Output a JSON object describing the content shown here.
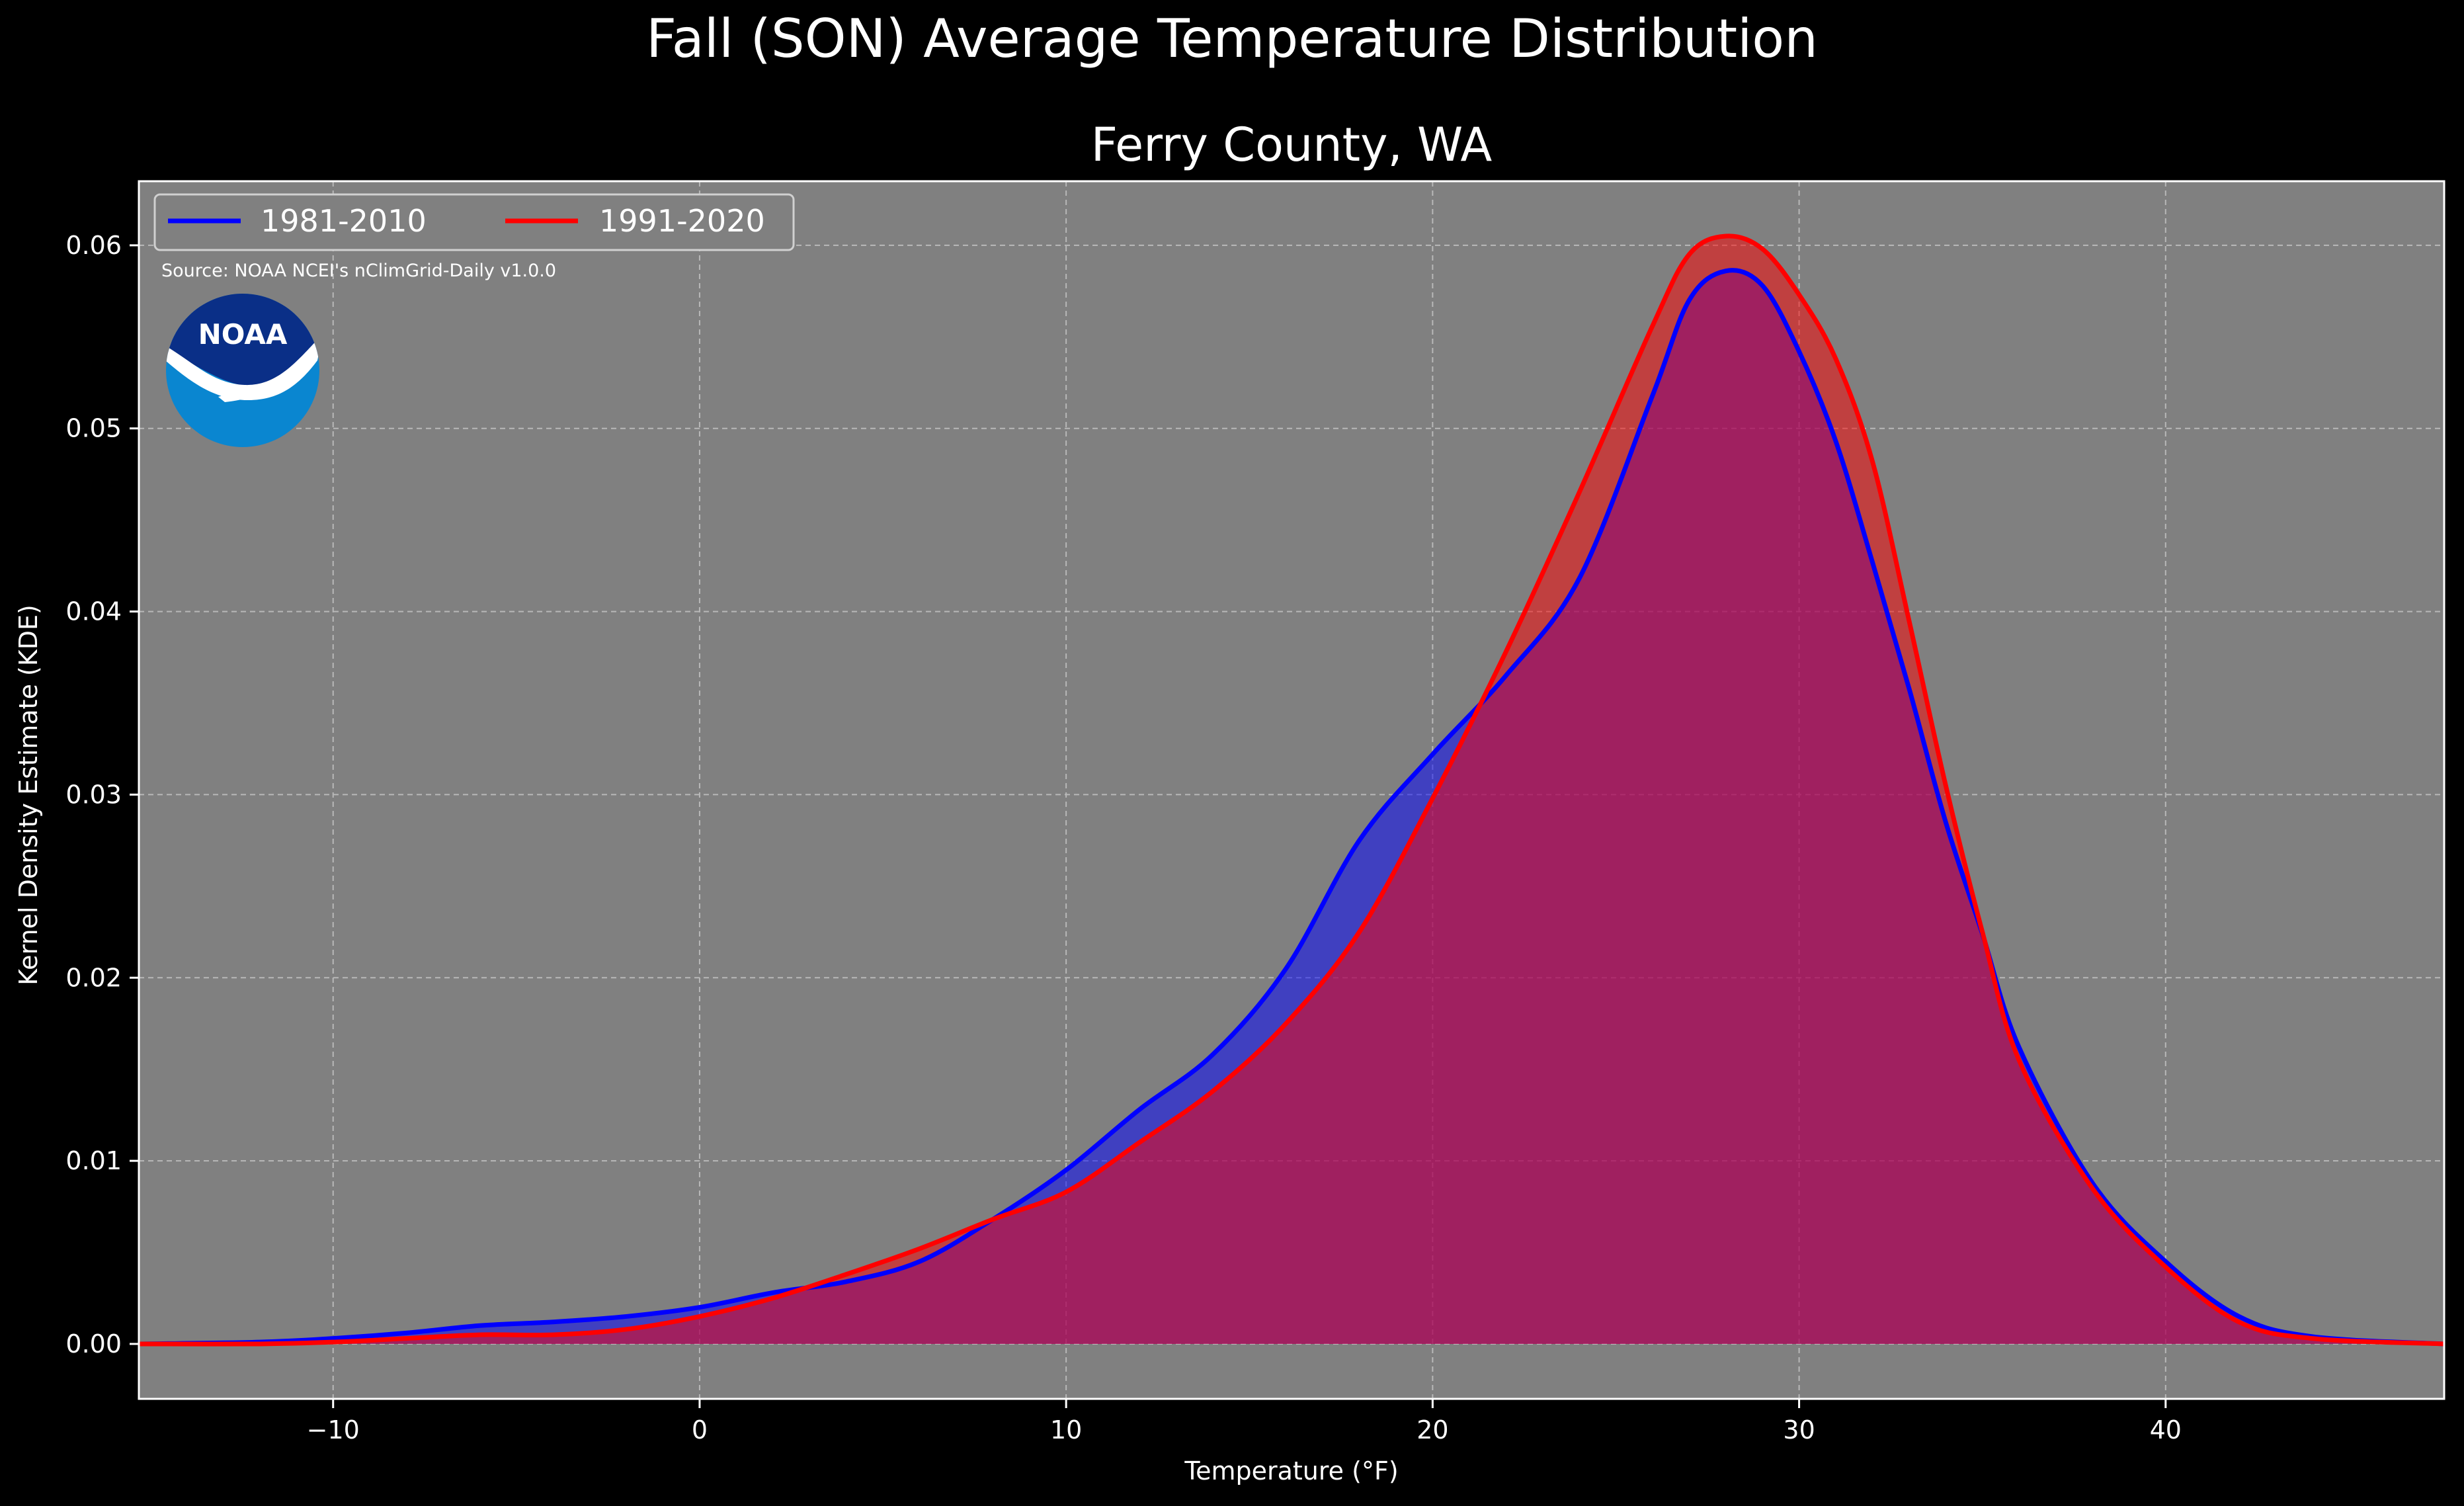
{
  "suptitle": "Fall (SON) Average Temperature Distribution",
  "subtitle": "Ferry County, WA",
  "source_note": "Source: NOAA NCEI's nClimGrid-Daily v1.0.0",
  "logo_text": "NOAA",
  "colors": {
    "background": "#000000",
    "plot_background": "#808080",
    "series_1": "#0000ff",
    "series_2": "#ff0000",
    "noaa_dark": "#0a2f87",
    "noaa_light": "#0a86d0"
  },
  "chart_data": {
    "type": "area",
    "xlabel": "Temperature (°F)",
    "ylabel": "Kernel Density Estimate (KDE)",
    "xlim": [
      -15.3,
      47.6
    ],
    "ylim": [
      -0.003,
      0.0635
    ],
    "xticks": [
      -10,
      0,
      10,
      20,
      30,
      40
    ],
    "xtick_labels": [
      "−10",
      "0",
      "10",
      "20",
      "30",
      "40"
    ],
    "yticks": [
      0.0,
      0.01,
      0.02,
      0.03,
      0.04,
      0.05,
      0.06
    ],
    "ytick_labels": [
      "0.00",
      "0.01",
      "0.02",
      "0.03",
      "0.04",
      "0.05",
      "0.06"
    ],
    "grid": true,
    "legend_position": "top-left",
    "series": [
      {
        "name": "1981-2010",
        "color": "#0000ff",
        "x": [
          -15.3,
          -12,
          -10,
          -8,
          -6,
          -4,
          -2,
          0,
          2,
          4,
          6,
          8,
          10,
          12,
          14,
          16,
          18,
          20,
          22,
          24,
          26,
          27,
          28,
          29,
          30,
          31,
          32,
          33,
          34,
          35,
          36,
          38,
          40,
          42,
          44,
          47.6
        ],
        "y": [
          0.0,
          0.0001,
          0.0003,
          0.0006,
          0.001,
          0.0012,
          0.0015,
          0.002,
          0.0028,
          0.0034,
          0.0045,
          0.0068,
          0.0095,
          0.0128,
          0.0158,
          0.0205,
          0.0275,
          0.0322,
          0.0365,
          0.0418,
          0.0518,
          0.057,
          0.0586,
          0.0578,
          0.0542,
          0.0493,
          0.0427,
          0.0358,
          0.0285,
          0.0224,
          0.0162,
          0.0088,
          0.0045,
          0.0015,
          0.0004,
          0.0
        ]
      },
      {
        "name": "1991-2020",
        "color": "#ff0000",
        "x": [
          -15.3,
          -12,
          -10,
          -8,
          -6,
          -4,
          -2,
          0,
          2,
          4,
          6,
          8,
          10,
          12,
          14,
          16,
          18,
          20,
          22,
          24,
          26,
          27,
          28,
          29,
          30,
          31,
          32,
          33,
          34,
          35,
          36,
          38,
          40,
          42,
          44,
          47.6
        ],
        "y": [
          0.0,
          0.0,
          0.0001,
          0.0003,
          0.0005,
          0.0005,
          0.0008,
          0.0015,
          0.0025,
          0.0038,
          0.0052,
          0.0068,
          0.0083,
          0.011,
          0.0138,
          0.0175,
          0.0225,
          0.0298,
          0.0378,
          0.0465,
          0.0556,
          0.0595,
          0.0605,
          0.0598,
          0.0573,
          0.0538,
          0.0482,
          0.0395,
          0.0305,
          0.0225,
          0.0155,
          0.0085,
          0.0042,
          0.0012,
          0.0003,
          0.0
        ]
      }
    ]
  }
}
